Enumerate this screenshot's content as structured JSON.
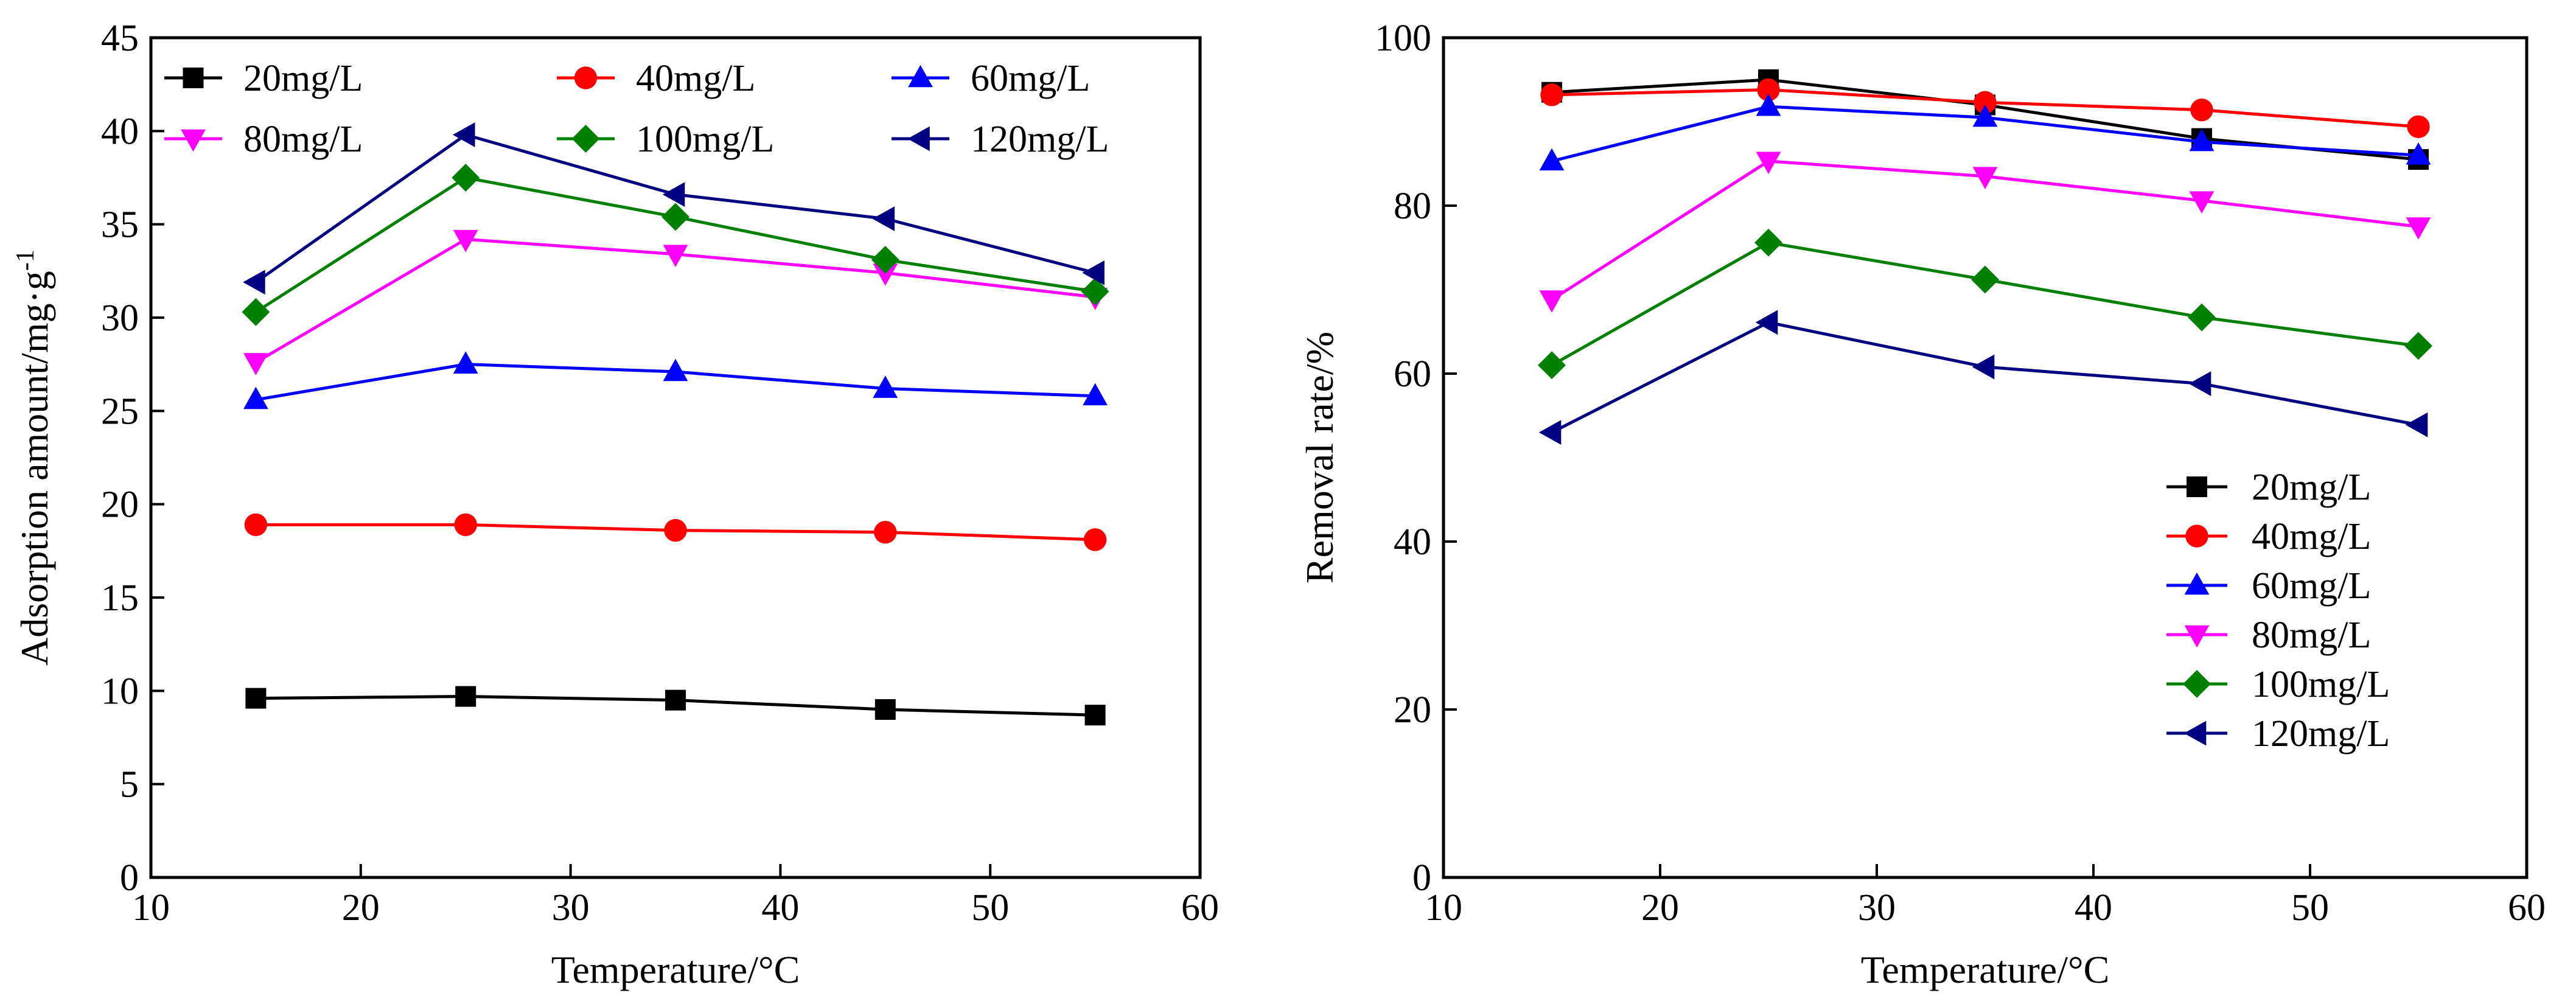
{
  "chart_data": [
    {
      "type": "line",
      "xlabel": "Temperature/°C",
      "ylabel": "Adsorption amount/mg·g",
      "ylabel_sup": "-1",
      "xlim": [
        10,
        60
      ],
      "ylim": [
        0,
        45
      ],
      "xticks": [
        10,
        20,
        30,
        40,
        50,
        60
      ],
      "yticks": [
        0,
        5,
        10,
        15,
        20,
        25,
        30,
        35,
        40,
        45
      ],
      "grid": false,
      "legend_position": "top, three columns",
      "x": [
        15,
        25,
        35,
        45,
        55
      ],
      "series": [
        {
          "name": "20mg/L",
          "color": "#000000",
          "marker": "square",
          "values": [
            9.6,
            9.7,
            9.5,
            9.0,
            8.7
          ]
        },
        {
          "name": "40mg/L",
          "color": "#ff0000",
          "marker": "circle",
          "values": [
            18.9,
            18.9,
            18.6,
            18.5,
            18.1
          ]
        },
        {
          "name": "60mg/L",
          "color": "#0000ff",
          "marker": "triangle-up",
          "values": [
            25.6,
            27.5,
            27.1,
            26.2,
            25.8
          ]
        },
        {
          "name": "80mg/L",
          "color": "#ff00ff",
          "marker": "triangle-down",
          "values": [
            27.6,
            34.2,
            33.4,
            32.4,
            31.1
          ]
        },
        {
          "name": "100mg/L",
          "color": "#008000",
          "marker": "diamond",
          "values": [
            30.3,
            37.5,
            35.4,
            33.1,
            31.4
          ]
        },
        {
          "name": "120mg/L",
          "color": "#000080",
          "marker": "triangle-left",
          "values": [
            31.9,
            39.8,
            36.6,
            35.3,
            32.4
          ]
        }
      ]
    },
    {
      "type": "line",
      "xlabel": "Temperature/°C",
      "ylabel": "Removal rate/%",
      "xlim": [
        10,
        60
      ],
      "ylim": [
        0,
        100
      ],
      "xticks": [
        10,
        20,
        30,
        40,
        50,
        60
      ],
      "yticks": [
        0,
        20,
        40,
        60,
        80,
        100
      ],
      "grid": false,
      "legend_position": "bottom-right",
      "x": [
        15,
        25,
        35,
        45,
        55
      ],
      "series": [
        {
          "name": "20mg/L",
          "color": "#000000",
          "marker": "square",
          "values": [
            93.5,
            95.0,
            92.0,
            88.0,
            85.5
          ]
        },
        {
          "name": "40mg/L",
          "color": "#ff0000",
          "marker": "circle",
          "values": [
            93.2,
            93.8,
            92.3,
            91.4,
            89.4
          ]
        },
        {
          "name": "60mg/L",
          "color": "#0000ff",
          "marker": "triangle-up",
          "values": [
            85.3,
            91.8,
            90.5,
            87.6,
            86.0
          ]
        },
        {
          "name": "80mg/L",
          "color": "#ff00ff",
          "marker": "triangle-down",
          "values": [
            68.8,
            85.3,
            83.5,
            80.6,
            77.5
          ]
        },
        {
          "name": "100mg/L",
          "color": "#008000",
          "marker": "diamond",
          "values": [
            61.0,
            75.6,
            71.2,
            66.7,
            63.3
          ]
        },
        {
          "name": "120mg/L",
          "color": "#000080",
          "marker": "triangle-left",
          "values": [
            53.0,
            66.1,
            60.8,
            58.8,
            53.9
          ]
        }
      ]
    }
  ]
}
